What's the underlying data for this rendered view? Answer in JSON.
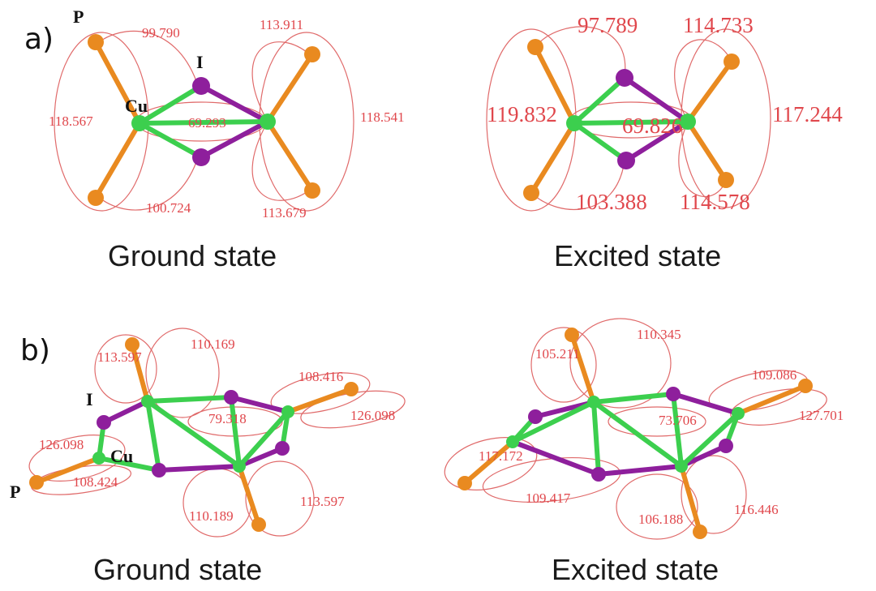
{
  "panels": {
    "a": {
      "letter": "a)",
      "ground": {
        "caption": "Ground state",
        "atom_labels": {
          "P": "P",
          "I": "I",
          "Cu": "Cu"
        },
        "angles": [
          "99.790",
          "113.911",
          "118.567",
          "69.293",
          "118.541",
          "100.724",
          "113.679"
        ]
      },
      "excited": {
        "caption": "Excited state",
        "angles": [
          "97.789",
          "114.733",
          "119.832",
          "69.826",
          "117.244",
          "103.388",
          "114.578"
        ]
      }
    },
    "b": {
      "letter": "b)",
      "ground": {
        "caption": "Ground state",
        "atom_labels": {
          "I": "I",
          "Cu": "Cu",
          "P": "P"
        },
        "angles": [
          "113.597",
          "110.169",
          "108.416",
          "126.098",
          "79.318",
          "126.098",
          "108.424",
          "110.189",
          "113.597"
        ]
      },
      "excited": {
        "caption": "Excited state",
        "angles": [
          "105.211",
          "110.345",
          "109.086",
          "127.701",
          "73.706",
          "117.172",
          "109.417",
          "106.188",
          "116.446"
        ]
      }
    }
  },
  "colors": {
    "copper": "#3ccf4e",
    "iodine": "#8e1f9c",
    "phosphorus": "#e98a20",
    "angle_text": "#e0474c"
  }
}
